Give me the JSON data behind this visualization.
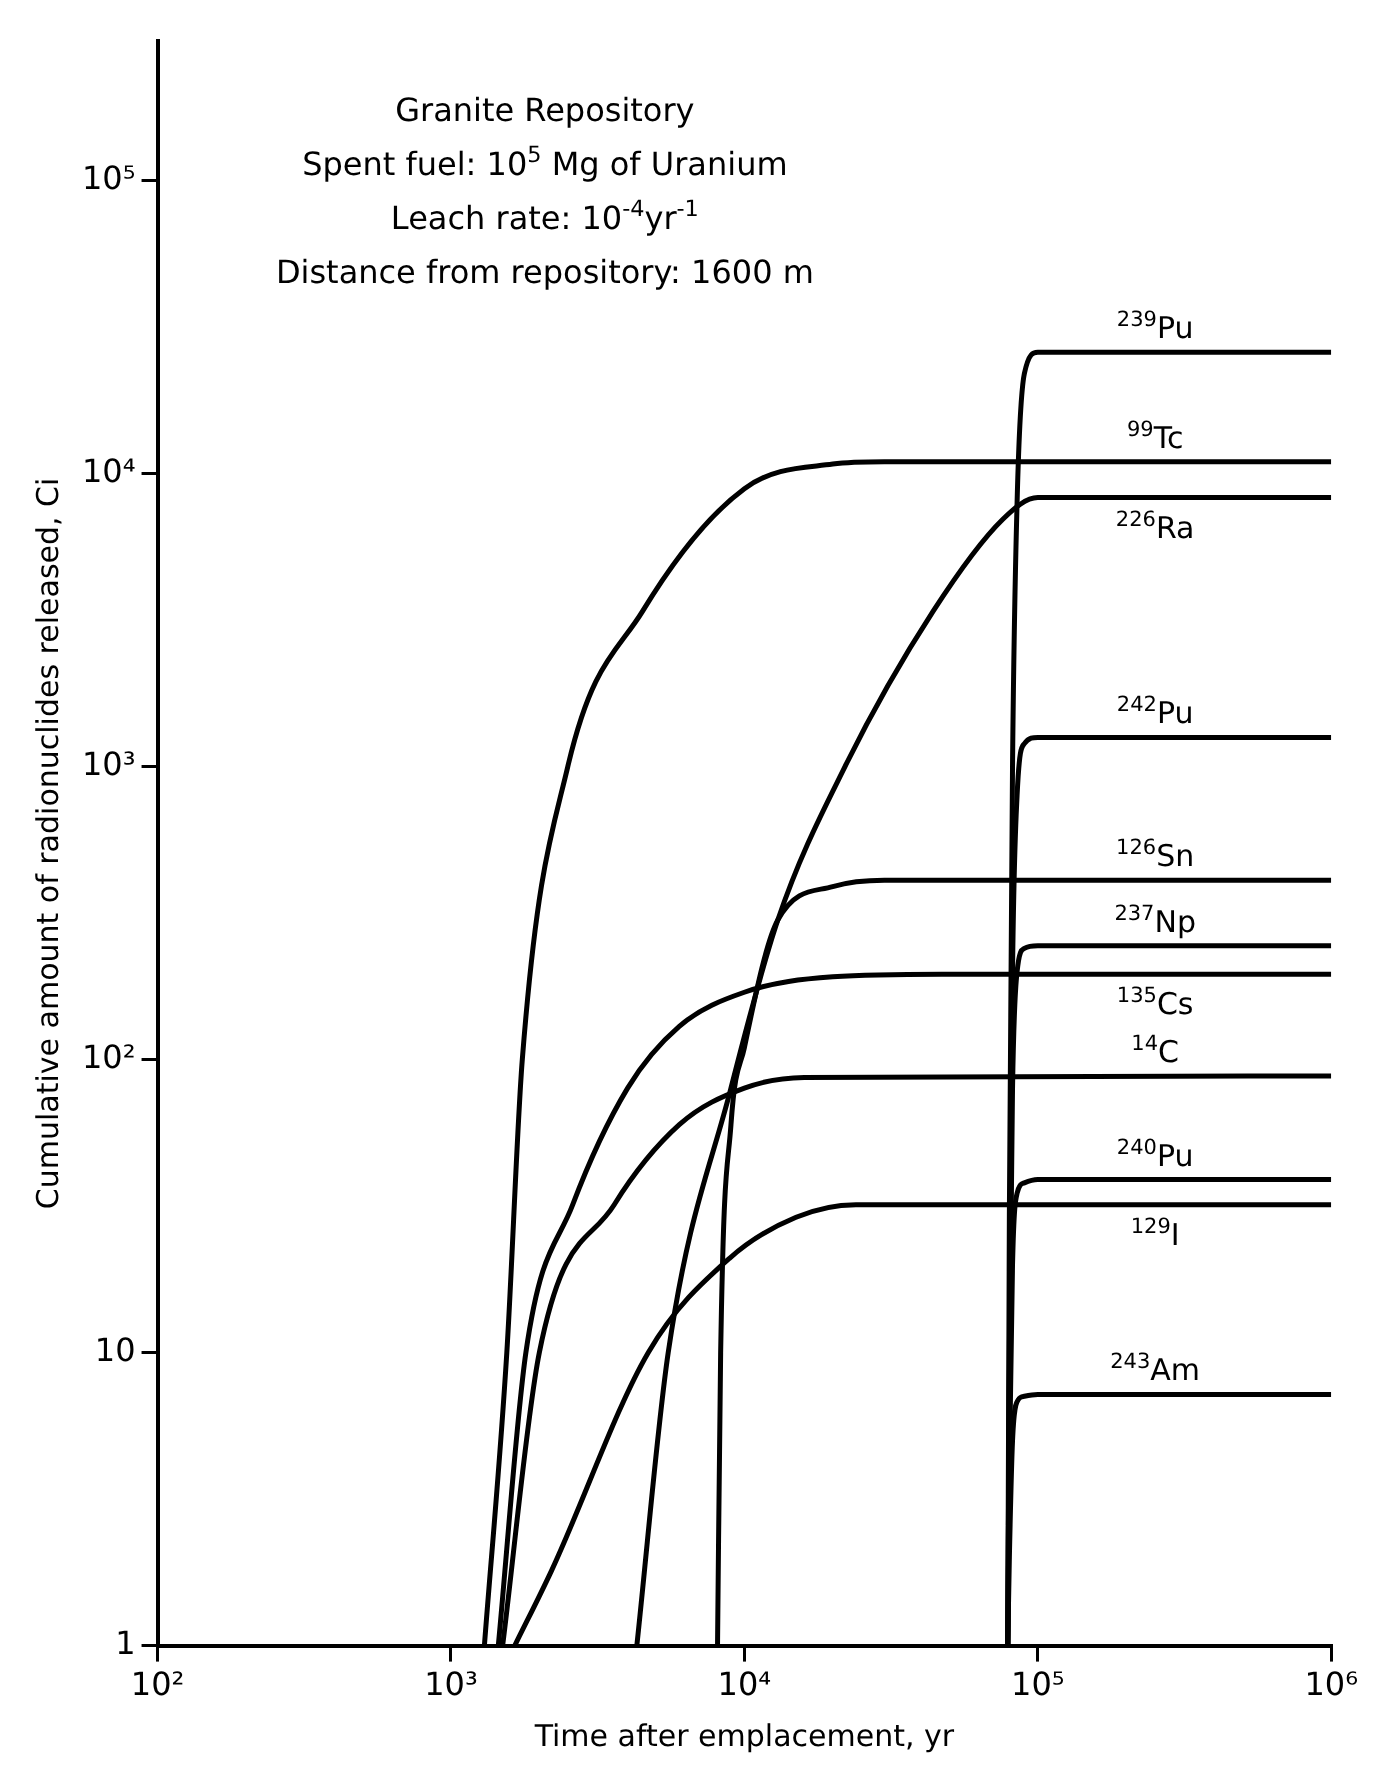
{
  "chart_data": {
    "type": "line",
    "xlabel": "Time after emplacement, yr",
    "ylabel": "Cumulative amount of radionuclides released, Ci",
    "annotations": [
      "Granite Repository",
      "Spent fuel: 10$^{5}$ Mg of Uranium",
      "Leach rate: 10$^{-4}$yr$^{-1}$",
      "Distance from repository: 1600 m"
    ],
    "log": "xy",
    "grid": false,
    "legend": false,
    "marker": "none",
    "line_style": "solid",
    "xlim": [
      100,
      1000000
    ],
    "xticks": [
      {
        "value": 100,
        "label": "10²"
      },
      {
        "value": 1000,
        "label": "10³"
      },
      {
        "value": 10000,
        "label": "10⁴"
      },
      {
        "value": 100000,
        "label": "10⁵"
      },
      {
        "value": 1000000,
        "label": "10⁶"
      }
    ],
    "ylim": [
      1,
      300000
    ],
    "yticks": [
      1,
      10,
      {
        "value": 100,
        "label": "10²"
      },
      {
        "value": 1000,
        "label": "10³"
      },
      {
        "value": 10000,
        "label": "10⁴"
      },
      {
        "value": 100000,
        "label": "10⁵"
      }
    ],
    "series": [
      {
        "name": "$^{239}$Pu",
        "color": "#000000",
        "x": [
          79000,
          80000,
          82000,
          85000,
          90000,
          100000,
          1000000
        ],
        "values": [
          1,
          30,
          1000,
          8000,
          22000,
          26000,
          26000
        ]
      },
      {
        "name": "$^{99}$Tc",
        "color": "#000000",
        "x": [
          1300,
          1550,
          1750,
          2500,
          4500,
          10000,
          20000,
          30000,
          1000000
        ],
        "values": [
          1,
          10,
          100,
          1000,
          3400,
          8900,
          10800,
          11000,
          11000
        ]
      },
      {
        "name": "$^{226}$Ra",
        "color": "#000000",
        "x": [
          4300,
          5500,
          9000,
          13000,
          22000,
          44000,
          76000,
          100000,
          1000000
        ],
        "values": [
          1,
          10,
          80,
          300,
          1000,
          3400,
          7000,
          8300,
          8300
        ]
      },
      {
        "name": "$^{242}$Pu",
        "color": "#000000",
        "x": [
          79000,
          80000,
          82000,
          85000,
          90000,
          100000,
          1000000
        ],
        "values": [
          1,
          10,
          200,
          800,
          1200,
          1260,
          1260
        ]
      },
      {
        "name": "$^{126}$Sn",
        "color": "#000000",
        "x": [
          8100,
          8300,
          9000,
          10000,
          13000,
          20000,
          30000,
          1000000
        ],
        "values": [
          1,
          10,
          60,
          110,
          300,
          390,
          410,
          410
        ]
      },
      {
        "name": "$^{237}$Np",
        "color": "#000000",
        "x": [
          79000,
          80000,
          82000,
          85000,
          90000,
          100000,
          1000000
        ],
        "values": [
          1,
          8,
          80,
          200,
          240,
          245,
          245
        ]
      },
      {
        "name": "$^{135}$Cs",
        "color": "#000000",
        "x": [
          1450,
          1800,
          2600,
          4000,
          6000,
          10000,
          20000,
          47000,
          1000000
        ],
        "values": [
          1,
          10,
          32,
          80,
          130,
          170,
          192,
          196,
          196
        ]
      },
      {
        "name": "$^{14}$C",
        "color": "#000000",
        "x": [
          1500,
          2000,
          3600,
          6000,
          10000,
          16000,
          1000000
        ],
        "values": [
          1,
          10,
          32,
          60,
          80,
          87,
          88
        ]
      },
      {
        "name": "$^{240}$Pu",
        "color": "#000000",
        "x": [
          79000,
          80000,
          82000,
          85000,
          90000,
          100000,
          1000000
        ],
        "values": [
          1,
          4,
          20,
          35,
          38,
          39,
          39
        ]
      },
      {
        "name": "$^{129}$I",
        "color": "#000000",
        "x": [
          1650,
          2200,
          4700,
          8900,
          15000,
          24000,
          1000000
        ],
        "values": [
          1,
          1.8,
          10,
          21,
          29,
          32,
          32
        ]
      },
      {
        "name": "$^{243}$Am",
        "color": "#000000",
        "x": [
          79000,
          80000,
          82000,
          85000,
          90000,
          100000,
          1000000
        ],
        "values": [
          1,
          2,
          5,
          6.8,
          7.1,
          7.2,
          7.2
        ]
      }
    ]
  }
}
